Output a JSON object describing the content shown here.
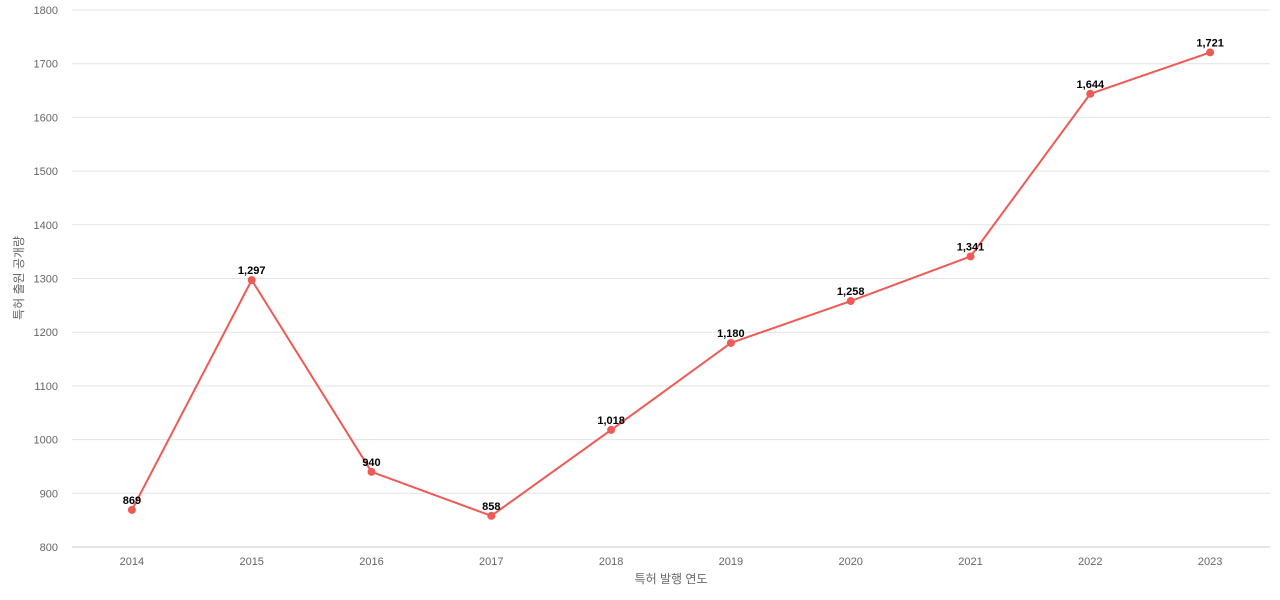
{
  "chart_data": {
    "type": "line",
    "title": "",
    "xlabel": "특허 발행 연도",
    "ylabel": "특허 출원 공개량",
    "x": [
      "2014",
      "2015",
      "2016",
      "2017",
      "2018",
      "2019",
      "2020",
      "2021",
      "2022",
      "2023"
    ],
    "series": [
      {
        "values": [
          869,
          1297,
          940,
          858,
          1018,
          1180,
          1258,
          1341,
          1644,
          1721
        ],
        "labels": [
          "869",
          "1,297",
          "940",
          "858",
          "1,018",
          "1,180",
          "1,258",
          "1,341",
          "1,644",
          "1,721"
        ],
        "color": "#ef5a55"
      }
    ],
    "ylim": [
      800,
      1800
    ],
    "yticks": [
      "800",
      "900",
      "1000",
      "1100",
      "1200",
      "1300",
      "1400",
      "1500",
      "1600",
      "1700",
      "1800"
    ],
    "grid": true,
    "legend": "none"
  }
}
